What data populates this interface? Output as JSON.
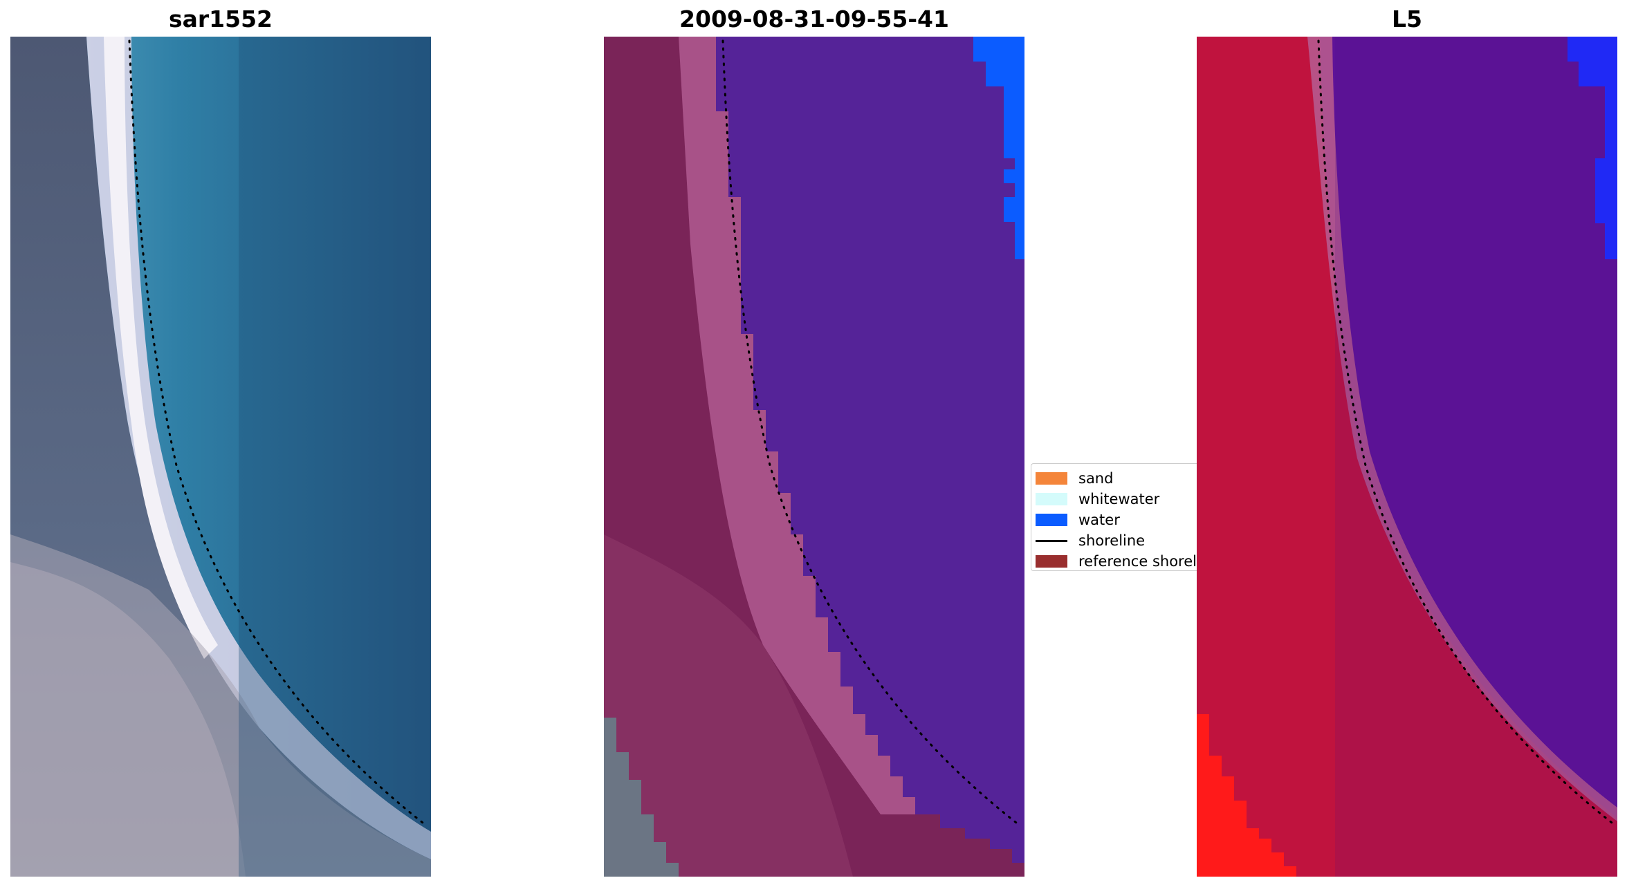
{
  "panels": [
    {
      "title": "sar1552"
    },
    {
      "title": "2009-08-31-09-55-41"
    },
    {
      "title": "L5"
    }
  ],
  "legend": {
    "items": [
      {
        "label": "sand",
        "color": "#f4853a",
        "kind": "patch"
      },
      {
        "label": "whitewater",
        "color": "#d4fbfb",
        "kind": "patch"
      },
      {
        "label": "water",
        "color": "#0b5cff",
        "kind": "patch"
      },
      {
        "label": "shoreline",
        "color": "#000000",
        "kind": "line"
      },
      {
        "label": "reference shoreli",
        "color": "#992e2e",
        "kind": "patch"
      }
    ]
  },
  "colors": {
    "ocean_teal": "#2d77a0",
    "land_gray": "#5b6078",
    "classified_water_purple": "#552398",
    "classified_land_magenta": "#7a2458",
    "l5_land_red": "#c0133e",
    "l5_water_purple": "#5e1398",
    "blue_patch": "#0b5cff"
  }
}
